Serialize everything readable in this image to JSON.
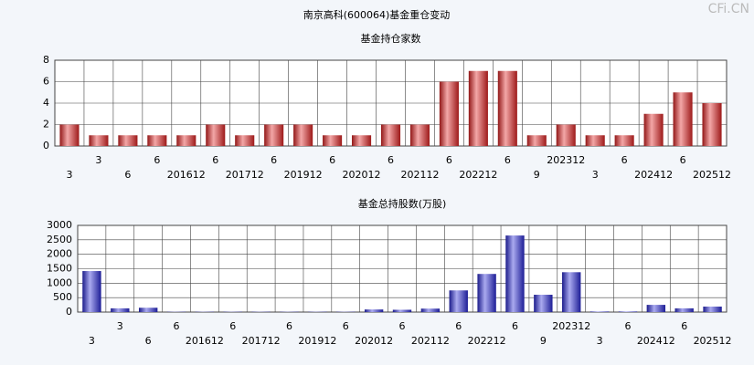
{
  "title": "南京高科(600064)基金重仓变动",
  "watermark": "CFi.CN",
  "chart_data": [
    {
      "type": "bar",
      "title": "基金持仓家数",
      "color": "#e02424",
      "categories": [
        "3",
        "3",
        "6",
        "6",
        "201612",
        "6",
        "201712",
        "6",
        "201912",
        "6",
        "202012",
        "6",
        "202112",
        "6",
        "202212",
        "6",
        "9",
        "202312",
        "3",
        "6",
        "202412",
        "6",
        "202512"
      ],
      "values": [
        2,
        1,
        1,
        1,
        1,
        2,
        1,
        2,
        2,
        1,
        1,
        2,
        2,
        6,
        7,
        7,
        1,
        2,
        1,
        1,
        3,
        5,
        4
      ],
      "ylim": [
        0,
        8
      ],
      "yticks": [
        0,
        2,
        4,
        6,
        8
      ],
      "grid": true
    },
    {
      "type": "bar",
      "title": "基金总持股数(万股)",
      "color": "#2a2ad6",
      "categories": [
        "3",
        "3",
        "6",
        "6",
        "201612",
        "6",
        "201712",
        "6",
        "201912",
        "6",
        "202012",
        "6",
        "202112",
        "6",
        "202212",
        "6",
        "9",
        "202312",
        "3",
        "6",
        "202412",
        "6",
        "202512"
      ],
      "values": [
        1420,
        130,
        150,
        10,
        10,
        10,
        10,
        10,
        10,
        10,
        90,
        80,
        120,
        750,
        1320,
        2650,
        600,
        1380,
        20,
        20,
        250,
        130,
        190
      ],
      "ylim": [
        0,
        3000
      ],
      "yticks": [
        0,
        500,
        1000,
        1500,
        2000,
        2500,
        3000
      ],
      "grid": true
    }
  ]
}
